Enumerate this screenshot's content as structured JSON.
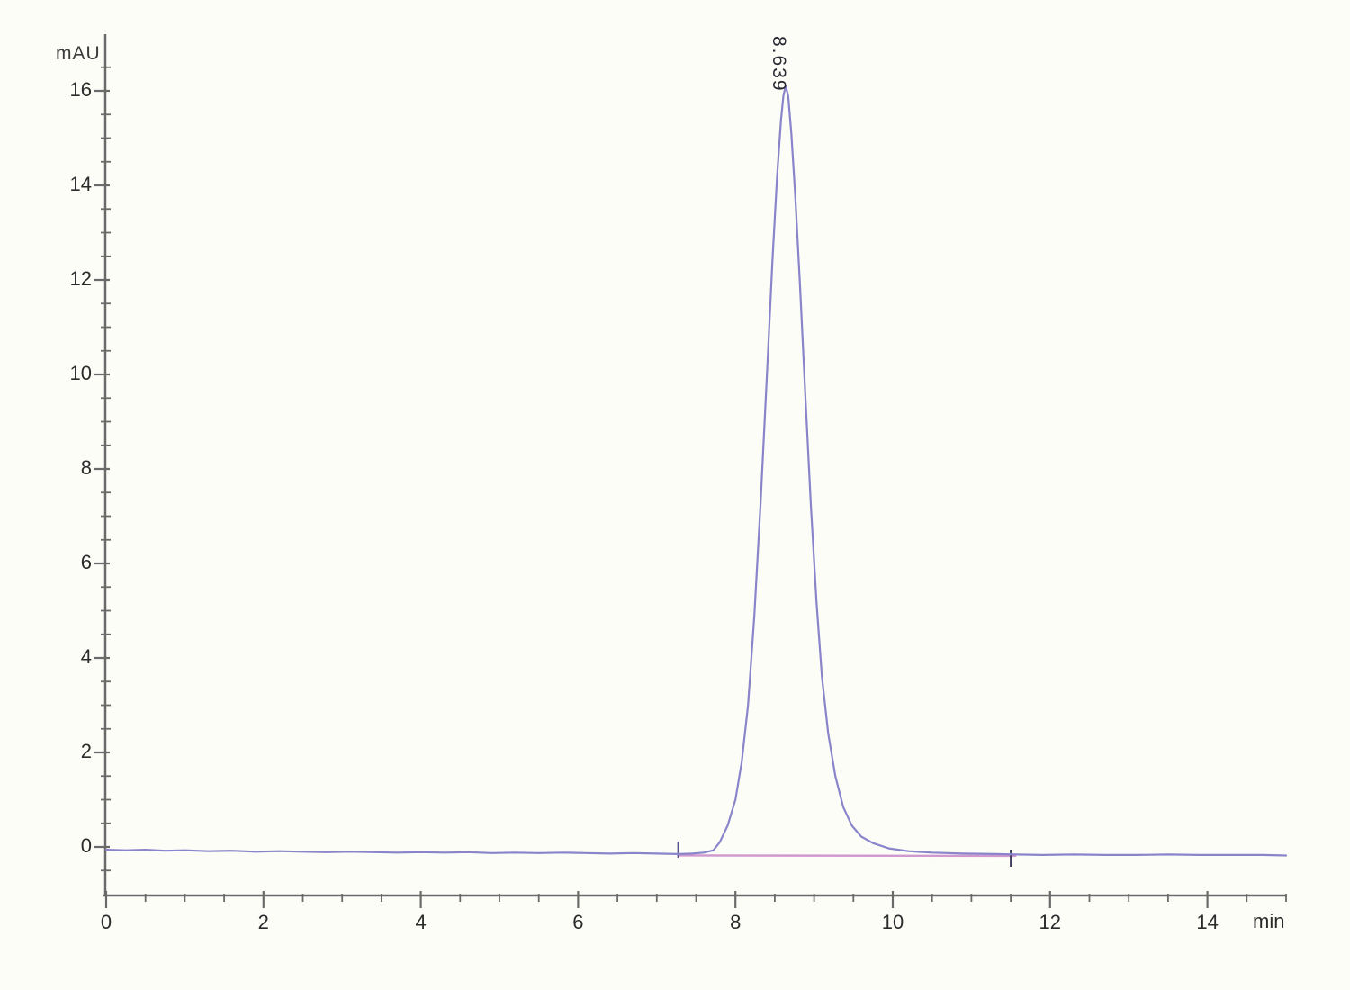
{
  "window": {
    "background": "#fdfdf8"
  },
  "chart_data": {
    "type": "line",
    "xlabel": "min",
    "ylabel": "mAU",
    "grid": "off",
    "legend": "none",
    "x_axis": {
      "unit": "min",
      "range": [
        0,
        15.05
      ],
      "major_ticks": [
        0,
        2,
        4,
        6,
        8,
        10,
        12,
        14
      ],
      "major_tick_labels": [
        "0",
        "2",
        "4",
        "6",
        "8",
        "10",
        "12",
        "14"
      ],
      "minor_tick_step": 0.5,
      "minor_tick_min": 0.5,
      "minor_tick_max": 15.0
    },
    "y_axis": {
      "unit": "mAU",
      "range": [
        -1.03,
        17.2
      ],
      "major_ticks": [
        0,
        2,
        4,
        6,
        8,
        10,
        12,
        14,
        16
      ],
      "major_tick_labels": [
        "0",
        "2",
        "4",
        "6",
        "8",
        "10",
        "12",
        "14",
        "16"
      ],
      "minor_tick_step": 0.5,
      "minor_tick_min": -0.5,
      "minor_tick_max": 16.5
    },
    "series": [
      {
        "name": "detector-signal",
        "color": "#8a85cb",
        "points": [
          [
            0,
            -0.06
          ],
          [
            0.25,
            -0.07
          ],
          [
            0.5,
            -0.06
          ],
          [
            0.75,
            -0.08
          ],
          [
            1.0,
            -0.07
          ],
          [
            1.3,
            -0.09
          ],
          [
            1.6,
            -0.08
          ],
          [
            1.9,
            -0.1
          ],
          [
            2.2,
            -0.09
          ],
          [
            2.5,
            -0.1
          ],
          [
            2.8,
            -0.11
          ],
          [
            3.1,
            -0.1
          ],
          [
            3.4,
            -0.11
          ],
          [
            3.7,
            -0.12
          ],
          [
            4.0,
            -0.11
          ],
          [
            4.3,
            -0.12
          ],
          [
            4.6,
            -0.11
          ],
          [
            4.9,
            -0.13
          ],
          [
            5.2,
            -0.12
          ],
          [
            5.5,
            -0.13
          ],
          [
            5.8,
            -0.12
          ],
          [
            6.1,
            -0.13
          ],
          [
            6.4,
            -0.14
          ],
          [
            6.7,
            -0.13
          ],
          [
            7.0,
            -0.14
          ],
          [
            7.27,
            -0.15
          ],
          [
            7.45,
            -0.14
          ],
          [
            7.6,
            -0.12
          ],
          [
            7.72,
            -0.07
          ],
          [
            7.8,
            0.1
          ],
          [
            7.9,
            0.45
          ],
          [
            8.0,
            1.0
          ],
          [
            8.08,
            1.8
          ],
          [
            8.16,
            3.0
          ],
          [
            8.24,
            4.9
          ],
          [
            8.32,
            7.3
          ],
          [
            8.4,
            10.0
          ],
          [
            8.47,
            12.4
          ],
          [
            8.53,
            14.2
          ],
          [
            8.58,
            15.4
          ],
          [
            8.61,
            15.9
          ],
          [
            8.639,
            16.1
          ],
          [
            8.67,
            15.9
          ],
          [
            8.71,
            15.1
          ],
          [
            8.76,
            13.8
          ],
          [
            8.82,
            11.9
          ],
          [
            8.89,
            9.5
          ],
          [
            8.96,
            7.2
          ],
          [
            9.03,
            5.2
          ],
          [
            9.1,
            3.6
          ],
          [
            9.18,
            2.4
          ],
          [
            9.27,
            1.5
          ],
          [
            9.37,
            0.85
          ],
          [
            9.48,
            0.45
          ],
          [
            9.6,
            0.22
          ],
          [
            9.75,
            0.08
          ],
          [
            9.95,
            -0.03
          ],
          [
            10.2,
            -0.09
          ],
          [
            10.5,
            -0.12
          ],
          [
            10.9,
            -0.14
          ],
          [
            11.3,
            -0.15
          ],
          [
            11.57,
            -0.16
          ],
          [
            11.9,
            -0.17
          ],
          [
            12.3,
            -0.16
          ],
          [
            12.7,
            -0.17
          ],
          [
            13.1,
            -0.17
          ],
          [
            13.5,
            -0.16
          ],
          [
            13.9,
            -0.17
          ],
          [
            14.3,
            -0.17
          ],
          [
            14.7,
            -0.17
          ],
          [
            15.0,
            -0.18
          ]
        ]
      }
    ],
    "integration": {
      "baseline_color": "#d198cf",
      "baseline_from_t": 7.27,
      "baseline_to_t": 11.57,
      "baseline_v": -0.18,
      "start_marker_t": 7.27,
      "end_marker_t": 11.5
    },
    "peaks": [
      {
        "retention_time": 8.639,
        "label": "8.639",
        "height_mau": 16.1
      }
    ]
  },
  "colors": {
    "axis": "#6a6a6a",
    "tick_label": "#2b2b2b",
    "trace": "#8a85cb",
    "integration_baseline": "#d198cf",
    "peak_label": "#2a2a33"
  }
}
